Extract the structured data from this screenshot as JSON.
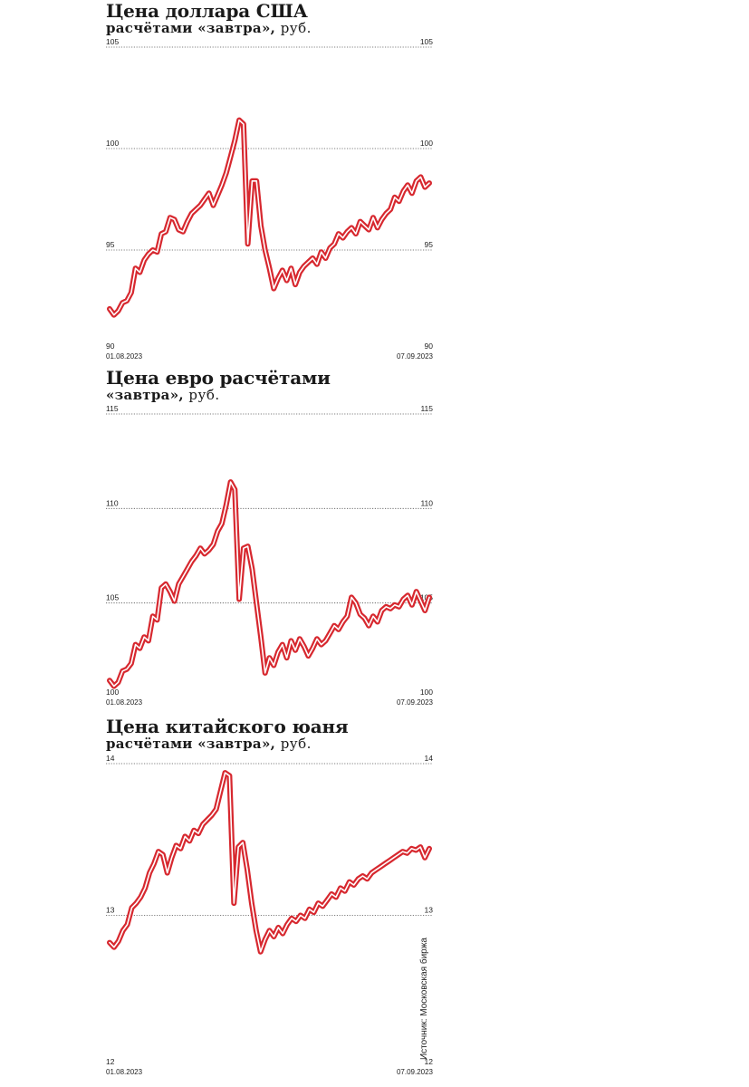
{
  "source": "Источник: Московская биржа",
  "chart_data": [
    {
      "type": "line",
      "title": "Цена доллара США",
      "subtitle": "расчётами «завтра»,",
      "unit": "руб.",
      "x_start": "01.08.2023",
      "x_end": "07.09.2023",
      "ylim": [
        90,
        105
      ],
      "yticks": [
        "90",
        "95",
        "100",
        "105"
      ],
      "grid": true,
      "color": "#d7282f",
      "values": [
        92.1,
        91.8,
        92.0,
        92.4,
        92.5,
        92.9,
        94.1,
        93.9,
        94.5,
        94.8,
        95.0,
        94.9,
        95.8,
        95.9,
        96.6,
        96.5,
        96.0,
        95.9,
        96.4,
        96.8,
        97.0,
        97.2,
        97.5,
        97.8,
        97.2,
        97.7,
        98.2,
        98.8,
        99.6,
        100.4,
        101.4,
        101.2,
        95.3,
        98.4,
        98.4,
        96.2,
        95.0,
        94.1,
        93.1,
        93.6,
        94.0,
        93.5,
        94.1,
        93.3,
        93.9,
        94.2,
        94.4,
        94.6,
        94.3,
        94.9,
        94.6,
        95.1,
        95.3,
        95.8,
        95.6,
        95.9,
        96.1,
        95.8,
        96.4,
        96.2,
        96.0,
        96.6,
        96.1,
        96.5,
        96.8,
        97.0,
        97.6,
        97.4,
        97.9,
        98.2,
        97.8,
        98.4,
        98.6,
        98.1,
        98.3
      ]
    },
    {
      "type": "line",
      "title": "Цена евро расчётами",
      "subtitle": "«завтра»,",
      "unit": "руб.",
      "x_start": "01.08.2023",
      "x_end": "07.09.2023",
      "ylim": [
        100,
        115
      ],
      "yticks": [
        "100",
        "105",
        "110",
        "115"
      ],
      "grid": true,
      "color": "#d7282f",
      "values": [
        100.9,
        100.6,
        100.8,
        101.4,
        101.5,
        101.8,
        102.8,
        102.6,
        103.2,
        103.0,
        104.3,
        104.1,
        105.8,
        106.0,
        105.6,
        105.1,
        106.0,
        106.4,
        106.8,
        107.2,
        107.5,
        107.9,
        107.6,
        107.8,
        108.1,
        108.8,
        109.2,
        110.2,
        111.4,
        111.0,
        105.2,
        107.9,
        108.0,
        106.8,
        105.0,
        103.2,
        101.3,
        102.1,
        101.7,
        102.4,
        102.8,
        102.1,
        103.0,
        102.5,
        103.1,
        102.7,
        102.2,
        102.6,
        103.1,
        102.8,
        103.0,
        103.4,
        103.8,
        103.6,
        104.0,
        104.3,
        105.3,
        105.0,
        104.4,
        104.2,
        103.8,
        104.3,
        104.0,
        104.6,
        104.8,
        104.7,
        104.9,
        104.8,
        105.2,
        105.4,
        104.9,
        105.6,
        105.1,
        104.6,
        105.3
      ]
    },
    {
      "type": "line",
      "title": "Цена китайского юаня",
      "subtitle": "расчётами «завтра»,",
      "unit": "руб.",
      "x_start": "01.08.2023",
      "x_end": "07.09.2023",
      "ylim": [
        12,
        14
      ],
      "yticks": [
        "12",
        "13",
        "14"
      ],
      "grid": true,
      "color": "#d7282f",
      "values": [
        12.82,
        12.79,
        12.83,
        12.9,
        12.94,
        13.05,
        13.08,
        13.12,
        13.18,
        13.28,
        13.34,
        13.42,
        13.4,
        13.28,
        13.38,
        13.46,
        13.44,
        13.52,
        13.49,
        13.56,
        13.54,
        13.6,
        13.63,
        13.66,
        13.7,
        13.82,
        13.94,
        13.92,
        13.08,
        13.45,
        13.48,
        13.3,
        13.08,
        12.9,
        12.76,
        12.84,
        12.9,
        12.86,
        12.92,
        12.88,
        12.94,
        12.98,
        12.96,
        13.0,
        12.98,
        13.04,
        13.02,
        13.08,
        13.06,
        13.1,
        13.14,
        13.12,
        13.18,
        13.16,
        13.22,
        13.2,
        13.24,
        13.26,
        13.24,
        13.28,
        13.3,
        13.32,
        13.34,
        13.36,
        13.38,
        13.4,
        13.42,
        13.41,
        13.44,
        13.43,
        13.45,
        13.38,
        13.44
      ]
    }
  ]
}
